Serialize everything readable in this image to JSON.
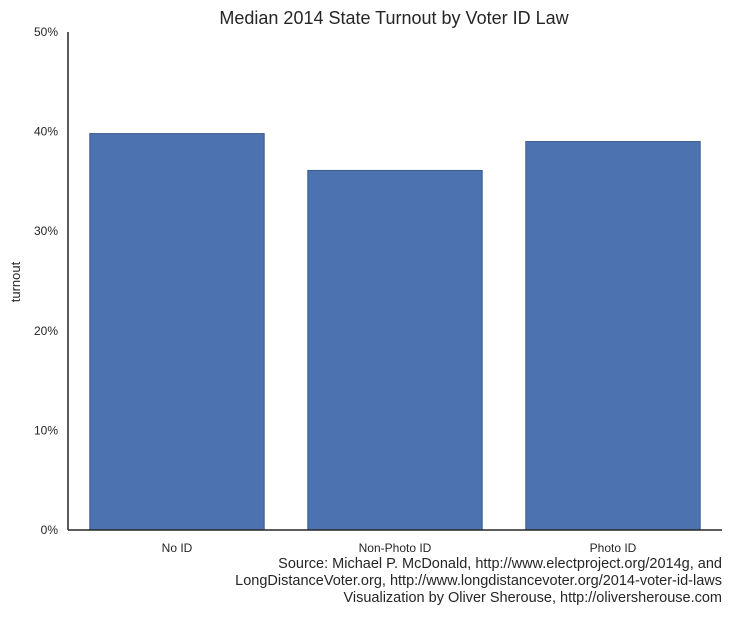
{
  "chart_data": {
    "type": "bar",
    "title": "Median 2014 State Turnout by Voter ID Law",
    "xlabel": "",
    "ylabel": "turnout",
    "categories": [
      "No ID",
      "Non-Photo ID",
      "Photo ID"
    ],
    "values": [
      39.8,
      36.1,
      39.0
    ],
    "ylim": [
      0,
      50
    ],
    "yticks": [
      "0%",
      "10%",
      "20%",
      "30%",
      "40%",
      "50%"
    ],
    "ytick_values": [
      0,
      10,
      20,
      30,
      40,
      50
    ],
    "grid": false,
    "colors": {
      "bar": "#4c72b0",
      "bar_edge": "#3a5a8c",
      "axis": "#262626"
    }
  },
  "source": {
    "line1": "Source: Michael P. McDonald, http://www.electproject.org/2014g, and",
    "line2": "LongDistanceVoter.org, http://www.longdistancevoter.org/2014-voter-id-laws",
    "line3": "Visualization by Oliver Sherouse, http://oliversherouse.com"
  }
}
